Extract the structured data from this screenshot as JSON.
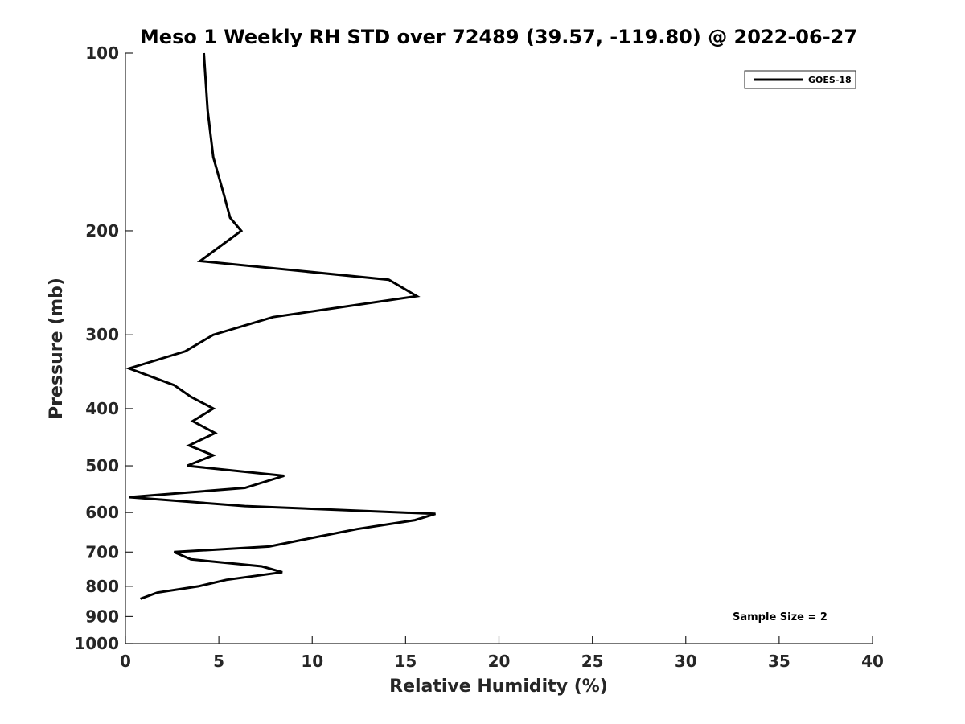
{
  "chart_data": {
    "type": "line",
    "title": "Meso 1 Weekly RH STD over 72489 (39.57, -119.80) @ 2022-06-27",
    "xlabel": "Relative Humidity (%)",
    "ylabel": "Pressure (mb)",
    "xlim": [
      0,
      40
    ],
    "ylim": [
      100,
      1000
    ],
    "y_scale": "log",
    "y_reversed": true,
    "x_ticks": [
      0,
      5,
      10,
      15,
      20,
      25,
      30,
      35,
      40
    ],
    "x_tick_labels": [
      "0",
      "5",
      "10",
      "15",
      "20",
      "25",
      "30",
      "35",
      "40"
    ],
    "y_ticks": [
      100,
      200,
      300,
      400,
      500,
      600,
      700,
      800,
      900,
      1000
    ],
    "y_tick_labels": [
      "100",
      "200",
      "300",
      "400",
      "500",
      "600",
      "700",
      "800",
      "900",
      "1000"
    ],
    "grid": false,
    "legend_position": "top-right",
    "series": [
      {
        "name": "GOES-18",
        "color": "#000000",
        "points": [
          [
            4.2,
            100
          ],
          [
            4.4,
            125
          ],
          [
            4.7,
            150
          ],
          [
            5.3,
            175
          ],
          [
            5.6,
            190
          ],
          [
            6.2,
            200
          ],
          [
            4.0,
            225
          ],
          [
            14.1,
            242
          ],
          [
            15.6,
            258
          ],
          [
            7.9,
            280
          ],
          [
            4.7,
            300
          ],
          [
            3.2,
            320
          ],
          [
            0.2,
            342
          ],
          [
            2.6,
            365
          ],
          [
            3.5,
            382
          ],
          [
            4.7,
            400
          ],
          [
            3.6,
            420
          ],
          [
            4.8,
            440
          ],
          [
            3.4,
            462
          ],
          [
            4.7,
            480
          ],
          [
            3.3,
            500
          ],
          [
            8.5,
            520
          ],
          [
            6.4,
            545
          ],
          [
            0.2,
            565
          ],
          [
            6.4,
            585
          ],
          [
            16.6,
            603
          ],
          [
            15.5,
            618
          ],
          [
            12.4,
            640
          ],
          [
            9.7,
            665
          ],
          [
            7.7,
            685
          ],
          [
            2.6,
            700
          ],
          [
            3.5,
            720
          ],
          [
            7.3,
            740
          ],
          [
            8.4,
            757
          ],
          [
            5.4,
            780
          ],
          [
            3.9,
            800
          ],
          [
            1.7,
            820
          ],
          [
            0.8,
            840
          ]
        ]
      }
    ],
    "annotations": [
      "Sample Size = 2"
    ]
  }
}
